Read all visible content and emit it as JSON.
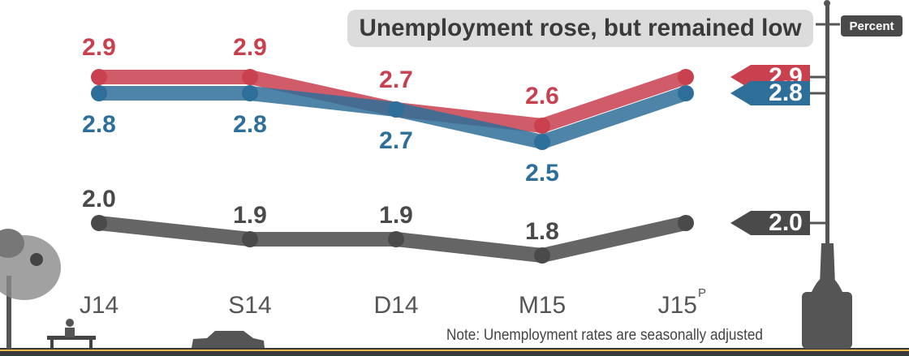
{
  "chart_data": {
    "type": "line",
    "title": "Unemployment rose, but remained low",
    "y_label": "Percent",
    "note": "Note: Unemployment rates are seasonally adjusted",
    "categories": [
      "J14",
      "S14",
      "D14",
      "M15",
      "J15"
    ],
    "category_superscript": "P",
    "ylim": [
      1.65,
      3.1
    ],
    "series": [
      {
        "color": "#c9404f",
        "values": [
          2.9,
          2.9,
          2.7,
          2.6,
          2.9
        ]
      },
      {
        "color": "#2e6f99",
        "values": [
          2.8,
          2.8,
          2.7,
          2.5,
          2.8
        ]
      },
      {
        "color": "#4a4a4a",
        "values": [
          2.0,
          1.9,
          1.9,
          1.8,
          2.0
        ],
        "value_labels": [
          "2.0",
          "1.9",
          "1.9",
          "1.8",
          "2.0"
        ]
      }
    ]
  }
}
